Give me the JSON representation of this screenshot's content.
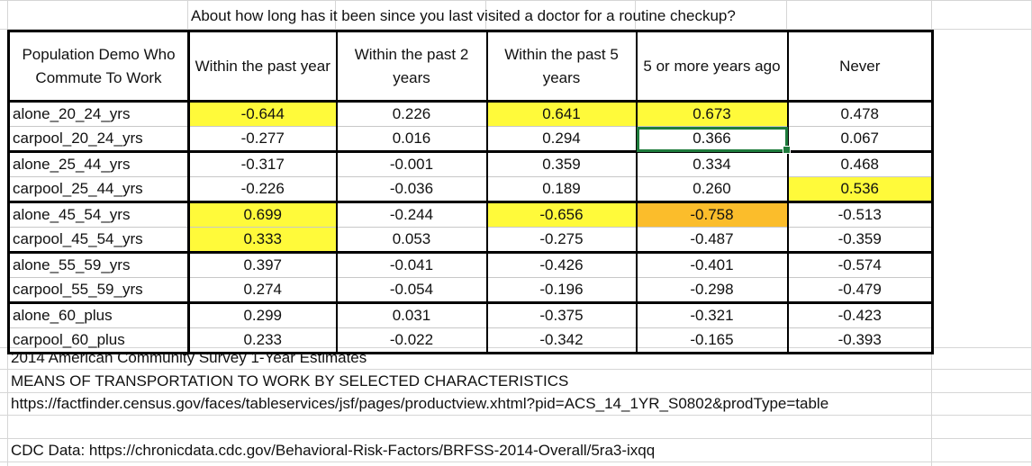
{
  "title": "About how long has it been since you last visited a doctor for a routine checkup?",
  "colors": {
    "highlight_yellow": "#fffa3a",
    "highlight_orange": "#fbbd2b",
    "selection": "#1e7b3c"
  },
  "headers": [
    "Population Demo Who Commute To Work",
    "Within the past year",
    "Within the past 2 years",
    "Within the past 5 years",
    "5 or more years ago",
    "Never"
  ],
  "rows": [
    {
      "label": "alone_20_24_yrs",
      "values": [
        "-0.644",
        "0.226",
        "0.641",
        "0.673",
        "0.478"
      ]
    },
    {
      "label": "carpool_20_24_yrs",
      "values": [
        "-0.277",
        "0.016",
        "0.294",
        "0.366",
        "0.067"
      ]
    },
    {
      "label": "alone_25_44_yrs",
      "values": [
        "-0.317",
        "-0.001",
        "0.359",
        "0.334",
        "0.468"
      ]
    },
    {
      "label": "carpool_25_44_yrs",
      "values": [
        "-0.226",
        "-0.036",
        "0.189",
        "0.260",
        "0.536"
      ]
    },
    {
      "label": "alone_45_54_yrs",
      "values": [
        "0.699",
        "-0.244",
        "-0.656",
        "-0.758",
        "-0.513"
      ]
    },
    {
      "label": "carpool_45_54_yrs",
      "values": [
        "0.333",
        "0.053",
        "-0.275",
        "-0.487",
        "-0.359"
      ]
    },
    {
      "label": "alone_55_59_yrs",
      "values": [
        "0.397",
        "-0.041",
        "-0.426",
        "-0.401",
        "-0.574"
      ]
    },
    {
      "label": "carpool_55_59_yrs",
      "values": [
        "0.274",
        "-0.054",
        "-0.196",
        "-0.298",
        "-0.479"
      ]
    },
    {
      "label": "alone_60_plus",
      "values": [
        "0.299",
        "0.031",
        "-0.375",
        "-0.321",
        "-0.423"
      ]
    },
    {
      "label": "carpool_60_plus",
      "values": [
        "0.233",
        "-0.022",
        "-0.342",
        "-0.165",
        "-0.393"
      ]
    }
  ],
  "notes": {
    "source_line1": "2014 American Community Survey 1-Year Estimates",
    "source_line2": "MEANS OF TRANSPORTATION TO WORK BY SELECTED CHARACTERISTICS",
    "source_url": "https://factfinder.census.gov/faces/tableservices/jsf/pages/productview.xhtml?pid=ACS_14_1YR_S0802&prodType=table",
    "cdc_line": "CDC Data:  https://chronicdata.cdc.gov/Behavioral-Risk-Factors/BRFSS-2014-Overall/5ra3-ixqq"
  }
}
